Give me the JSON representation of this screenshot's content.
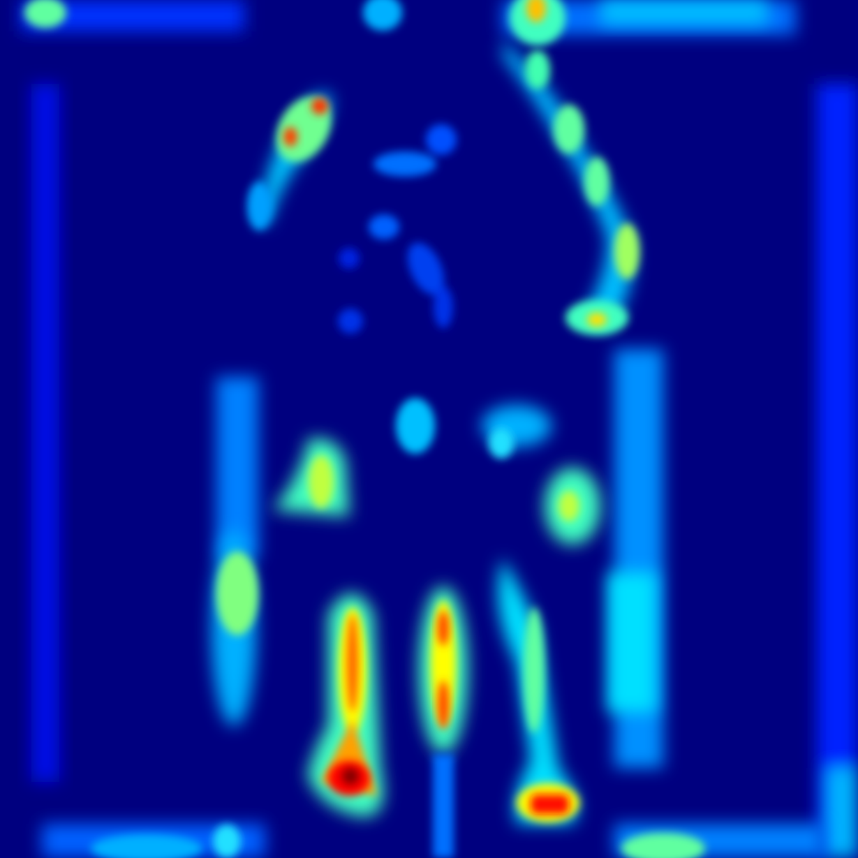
{
  "image": {
    "kind": "attention-heatmap",
    "colormap": "jet",
    "background_color": "#00007f",
    "colormap_stops": [
      "#00007f",
      "#0000ff",
      "#00a0ff",
      "#00ffff",
      "#80ff80",
      "#ffff00",
      "#ff8000",
      "#ff0000",
      "#800000"
    ]
  },
  "hotspots": [
    {
      "name": "top-left-band",
      "level": 0.45
    },
    {
      "name": "top-center-spot",
      "level": 0.35
    },
    {
      "name": "top-right-band",
      "level": 0.5
    },
    {
      "name": "top-right-peak",
      "level": 0.75
    },
    {
      "name": "upper-left-arc",
      "level": 0.8
    },
    {
      "name": "right-arc",
      "level": 0.55
    },
    {
      "name": "mid-right-blob",
      "level": 0.6
    },
    {
      "name": "center-left-blob",
      "level": 0.6
    },
    {
      "name": "center-spot",
      "level": 0.4
    },
    {
      "name": "center-right-spot",
      "level": 0.45
    },
    {
      "name": "right-mid-blob",
      "level": 0.6
    },
    {
      "name": "left-lower-blob",
      "level": 0.55
    },
    {
      "name": "lower-column-1",
      "level": 1.0
    },
    {
      "name": "lower-column-2",
      "level": 0.85
    },
    {
      "name": "lower-column-3",
      "level": 0.95
    },
    {
      "name": "right-column",
      "level": 0.4
    },
    {
      "name": "bottom-left-band",
      "level": 0.4
    },
    {
      "name": "bottom-right-band",
      "level": 0.45
    },
    {
      "name": "left-edge-strip",
      "level": 0.2
    },
    {
      "name": "right-edge-strip",
      "level": 0.25
    }
  ]
}
